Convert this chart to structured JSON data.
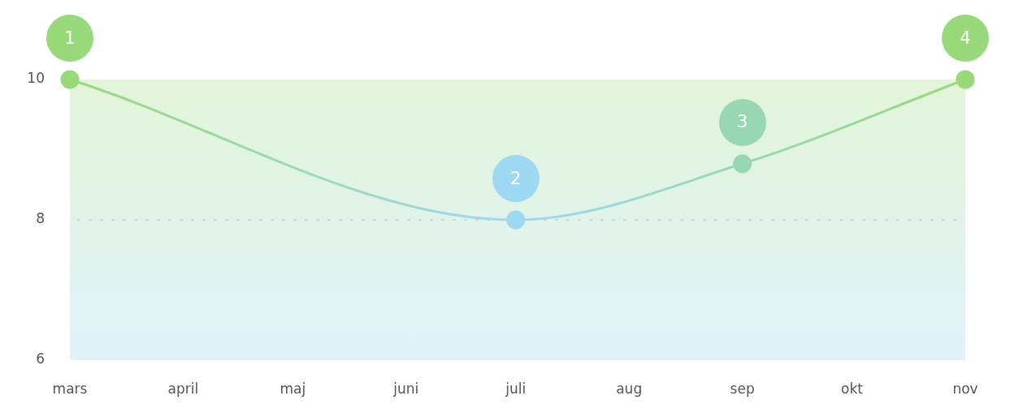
{
  "chart_data": {
    "type": "line",
    "x": [
      "--03-01",
      "--07-01",
      "--09-01",
      "--11-01"
    ],
    "values": [
      10,
      8,
      8.8,
      10
    ],
    "colors": [
      "#98d97a",
      "#9dd9f3",
      "#97d8b2",
      "#98d97a"
    ],
    "xlim": [
      "--03-01",
      "--11-01"
    ],
    "xticks": [
      {
        "value": "--03-01",
        "label": "mars"
      },
      {
        "value": "--04-01",
        "label": "april"
      },
      {
        "value": "--05-01",
        "label": "maj"
      },
      {
        "value": "--06-01",
        "label": "juni"
      },
      {
        "value": "--07-01",
        "label": "juli"
      },
      {
        "value": "--08-01",
        "label": "aug"
      },
      {
        "value": "--09-01",
        "label": "sep"
      },
      {
        "value": "--10-01",
        "label": "okt"
      },
      {
        "value": "--11-01",
        "label": "nov"
      }
    ],
    "ylim": [
      6,
      10
    ],
    "yticks": [
      6,
      8,
      10
    ],
    "marker": "circle",
    "line_style": "solid",
    "ref_lines": [
      {
        "axis": "y",
        "value": 8,
        "color": "#b9c9c1",
        "line_style": "dotted"
      }
    ],
    "annotations": [
      {
        "text": "1",
        "x": "--03-01",
        "y": 10
      },
      {
        "text": "2",
        "x": "--07-01",
        "y": 8
      },
      {
        "text": "3",
        "x": "--09-01",
        "y": 8.8
      },
      {
        "text": "4",
        "x": "--11-01",
        "y": 10
      }
    ]
  }
}
